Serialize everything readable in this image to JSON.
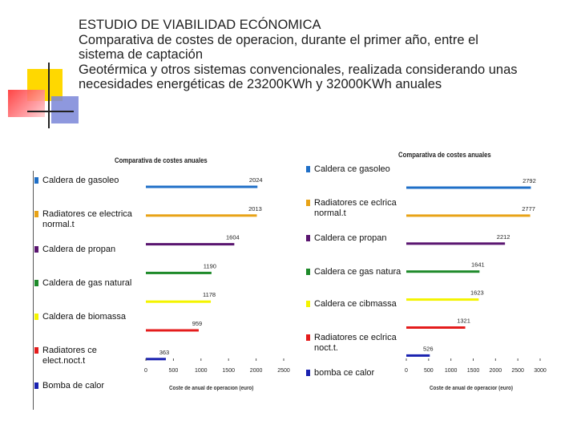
{
  "slide": {
    "title_lines": [
      "ESTUDIO DE VIABILIDAD ECÓNOMICA",
      "Comparativa de costes de operacion, durante el primer año, entre el",
      "sistema de captación",
      "Geotérmica y otros sistemas convencionales, realizada considerando unas",
      "necesidades energéticas de 23200KWh y 32000KWh anuales"
    ]
  },
  "chart_data": [
    {
      "type": "bar",
      "orientation": "horizontal",
      "title": "Comparativa de costes anuales",
      "xlabel": "Coste de anual de operacion (euro)",
      "xlim": [
        0,
        2500
      ],
      "xticks": [
        0,
        500,
        1000,
        1500,
        2000,
        2500
      ],
      "grid": false,
      "legend_placement": "left",
      "categories": [
        "Caldera de gasoleo",
        "Radiatores ce electrica\nnormal.t",
        "Caldera de propan",
        "Caldera de gas natural",
        "Caldera de biomassa",
        "Radiatores ce\nelect.noct.t",
        "Bomba de calor"
      ],
      "values": [
        2024,
        2013,
        1604,
        1190,
        1178,
        959,
        363
      ],
      "data_labels": [
        "2024",
        "2013",
        "1604",
        "1190",
        "1178",
        "959",
        "363"
      ],
      "colors": [
        "#1f6fc7",
        "#e8a317",
        "#5a1570",
        "#1e8a2a",
        "#f4f400",
        "#e41c1c",
        "#1a22b0"
      ]
    },
    {
      "type": "bar",
      "orientation": "horizontal",
      "title": "Comparativa de costes anuales",
      "xlabel": "Coste de anual de operacior (euro)",
      "xlim": [
        0,
        3000
      ],
      "xticks": [
        0,
        500,
        1000,
        1500,
        2000,
        2500,
        3000
      ],
      "grid": false,
      "legend_placement": "left",
      "categories": [
        "Caldera ce gasoleo",
        "Radiatores ce eclrica\nnormal.t",
        "Caldera ce propan",
        "Caldera ce gas natura",
        "Caldera ce cibmassa",
        "Radiatores ce eclrica\nnoct.t.",
        "bomba ce calor"
      ],
      "values": [
        2792,
        2777,
        2212,
        1641,
        1623,
        1321,
        526
      ],
      "data_labels": [
        "2792",
        "2777",
        "2212",
        "1641",
        "1623",
        "1321",
        "526"
      ],
      "colors": [
        "#1f6fc7",
        "#e8a317",
        "#5a1570",
        "#1e8a2a",
        "#f4f400",
        "#e41c1c",
        "#1a22b0"
      ]
    }
  ]
}
